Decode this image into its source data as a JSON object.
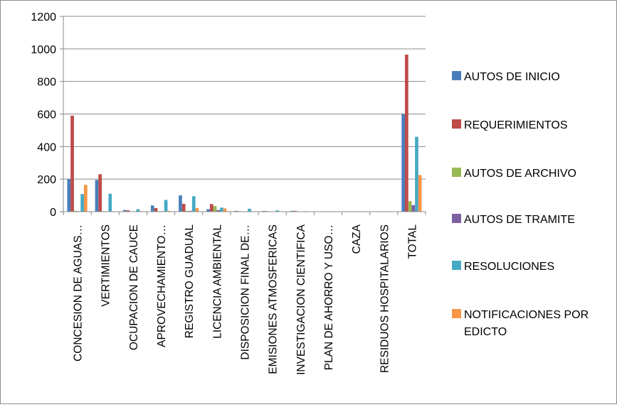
{
  "chart_data": {
    "type": "bar",
    "title": "",
    "xlabel": "",
    "ylabel": "",
    "ylim": [
      0,
      1200
    ],
    "yticks": [
      0,
      200,
      400,
      600,
      800,
      1000,
      1200
    ],
    "grid": true,
    "legend_position": "right",
    "categories": [
      "CONCESION DE AGUAS…",
      "VERTIMIENTOS",
      "OCUPACION DE CAUCE",
      "APROVECHAMIENTO…",
      "REGISTRO GUADUAL",
      "LICENCIA AMBIENTAL",
      "DISPOSICION FINAL DE…",
      "EMISIONES ATMOSFERICAS",
      "INVESTIGACION CIENTIFICA",
      "PLAN DE AHORRO Y USO…",
      "CAZA",
      "RESIDUOS HOSPITALARIOS",
      "TOTAL"
    ],
    "series": [
      {
        "name": "AUTOS DE INICIO",
        "color": "#4a7ebb",
        "values": [
          200,
          195,
          10,
          38,
          100,
          15,
          5,
          5,
          5,
          0,
          0,
          0,
          600
        ]
      },
      {
        "name": "REQUERIMIENTOS",
        "color": "#be4b48",
        "values": [
          590,
          230,
          8,
          22,
          48,
          47,
          3,
          3,
          5,
          0,
          0,
          0,
          965
        ]
      },
      {
        "name": "AUTOS DE ARCHIVO",
        "color": "#98b954",
        "values": [
          5,
          3,
          2,
          3,
          5,
          35,
          2,
          1,
          0,
          0,
          0,
          0,
          65
        ]
      },
      {
        "name": "AUTOS DE TRAMITE",
        "color": "#7d60a0",
        "values": [
          3,
          2,
          2,
          3,
          5,
          10,
          1,
          1,
          0,
          0,
          0,
          0,
          40
        ]
      },
      {
        "name": "RESOLUCIONES",
        "color": "#46aac5",
        "values": [
          108,
          110,
          15,
          72,
          95,
          25,
          18,
          8,
          3,
          0,
          0,
          0,
          460
        ]
      },
      {
        "name": "NOTIFICACIONES POR EDICTO",
        "color": "#f79646",
        "values": [
          165,
          3,
          3,
          5,
          22,
          20,
          2,
          1,
          0,
          0,
          0,
          0,
          225
        ]
      }
    ]
  }
}
